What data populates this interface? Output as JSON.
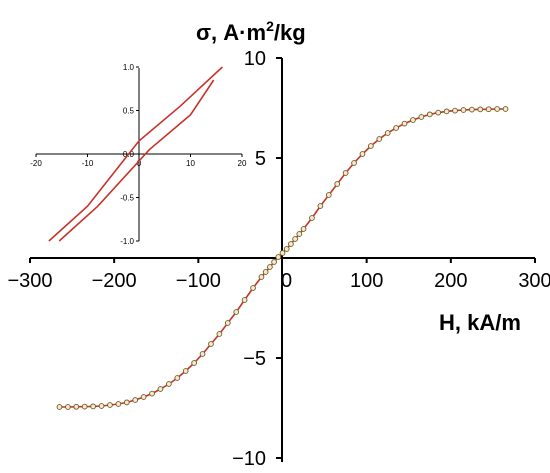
{
  "chart_data": [
    {
      "type": "line",
      "xlabel": "H, kA/m",
      "ylabel_main": "σ, A·m",
      "ylabel_sup": "2",
      "ylabel_tail": "/kg",
      "xlim": [
        -300,
        300
      ],
      "ylim": [
        -10,
        10
      ],
      "x_ticks": [
        -300,
        -200,
        -100,
        0,
        100,
        200,
        300
      ],
      "x_tick_labels": [
        "−300",
        "−200",
        "−100",
        "0",
        "100",
        "200",
        "300"
      ],
      "y_ticks": [
        -10,
        -5,
        0,
        5,
        10
      ],
      "y_tick_labels": [
        "−10",
        "−5",
        "0",
        "5",
        "10"
      ],
      "grid": false,
      "colors": {
        "curve": "#c8322a",
        "marker_fill": "#f4ead0",
        "marker_edge": "#6b5a20"
      },
      "series": [
        {
          "x": [
            -265,
            -255,
            -245,
            -235,
            -225,
            -215,
            -205,
            -195,
            -185,
            -175,
            -165,
            -155,
            -145,
            -135,
            -125,
            -115,
            -105,
            -95,
            -85,
            -75,
            -65,
            -55,
            -45,
            -35,
            -25,
            -20,
            -15,
            -10,
            -5,
            0,
            5,
            10,
            15,
            20,
            25,
            35,
            45,
            55,
            65,
            75,
            85,
            95,
            105,
            115,
            125,
            135,
            145,
            155,
            165,
            175,
            185,
            195,
            205,
            215,
            225,
            235,
            245,
            255,
            265
          ],
          "y": [
            -7.45,
            -7.45,
            -7.44,
            -7.43,
            -7.42,
            -7.4,
            -7.35,
            -7.3,
            -7.22,
            -7.1,
            -6.95,
            -6.78,
            -6.55,
            -6.3,
            -6.0,
            -5.65,
            -5.25,
            -4.8,
            -4.3,
            -3.8,
            -3.25,
            -2.7,
            -2.1,
            -1.5,
            -0.95,
            -0.7,
            -0.45,
            -0.2,
            0.05,
            0.25,
            0.45,
            0.7,
            0.95,
            1.2,
            1.45,
            2.0,
            2.6,
            3.15,
            3.7,
            4.25,
            4.75,
            5.2,
            5.6,
            5.95,
            6.25,
            6.5,
            6.72,
            6.9,
            7.05,
            7.18,
            7.27,
            7.33,
            7.37,
            7.4,
            7.42,
            7.43,
            7.44,
            7.45,
            7.45
          ]
        }
      ]
    },
    {
      "type": "line",
      "xlim": [
        -20,
        20
      ],
      "ylim": [
        -1.0,
        1.0
      ],
      "x_ticks": [
        -20,
        -10,
        0,
        10,
        20
      ],
      "x_tick_labels": [
        "-20",
        "-10",
        "0",
        "10",
        "20"
      ],
      "y_ticks": [
        -1.0,
        -0.5,
        0.0,
        0.5,
        1.0
      ],
      "y_tick_labels": [
        "-1.0",
        "-0.5",
        "0.0",
        "0.5",
        "1.0"
      ],
      "grid": false,
      "series": [
        {
          "x": [
            -17.5,
            -10,
            0,
            8,
            16.2
          ],
          "y": [
            -1.0,
            -0.6,
            0.15,
            0.55,
            1.0
          ]
        },
        {
          "x": [
            -15.5,
            -8,
            2,
            10,
            14.5
          ],
          "y": [
            -1.0,
            -0.6,
            0.05,
            0.45,
            0.85
          ]
        }
      ]
    }
  ]
}
